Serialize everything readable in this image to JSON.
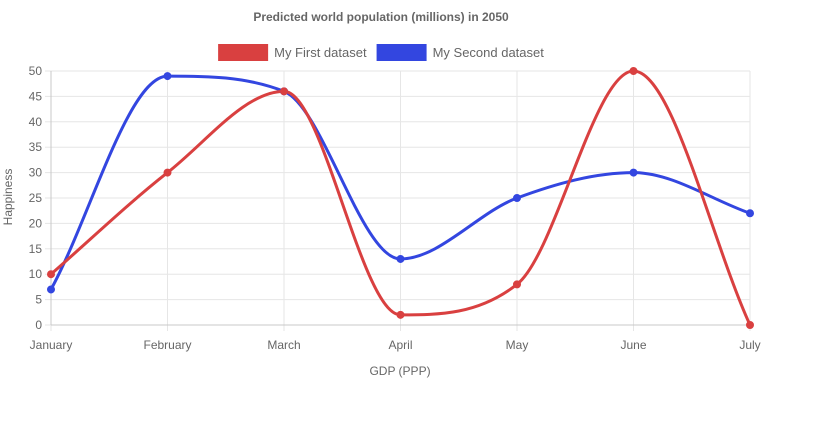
{
  "chart_data": {
    "type": "line",
    "title": "Predicted world population (millions) in 2050",
    "xlabel": "GDP (PPP)",
    "ylabel": "Happiness",
    "categories": [
      "January",
      "February",
      "March",
      "April",
      "May",
      "June",
      "July"
    ],
    "ylim": [
      0,
      50
    ],
    "y_ticks": [
      0,
      5,
      10,
      15,
      20,
      25,
      30,
      35,
      40,
      45,
      50
    ],
    "grid": true,
    "legend_position": "top",
    "smooth": true,
    "series": [
      {
        "name": "My First dataset",
        "color": "#d94040",
        "values": [
          10,
          30,
          46,
          2,
          8,
          50,
          0
        ]
      },
      {
        "name": "My Second dataset",
        "color": "#3346e0",
        "values": [
          7,
          49,
          46,
          13,
          25,
          30,
          22
        ]
      }
    ]
  }
}
